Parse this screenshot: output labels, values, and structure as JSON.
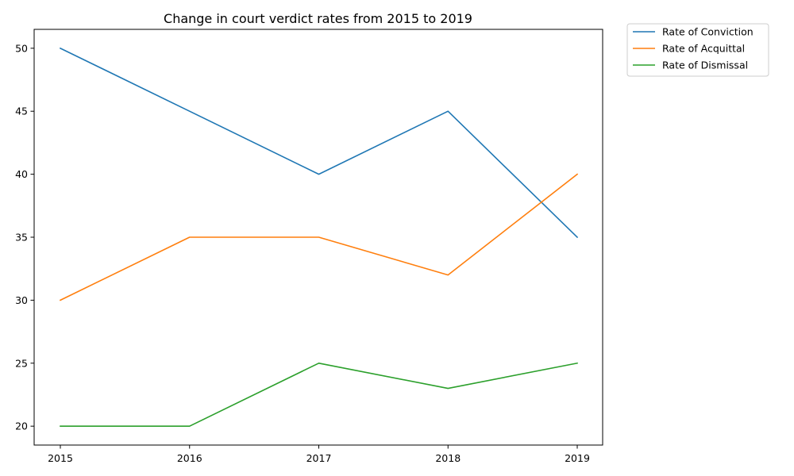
{
  "chart_data": {
    "type": "line",
    "title": "Change in court verdict rates from 2015 to 2019",
    "xlabel": "",
    "ylabel": "",
    "categories": [
      "2015",
      "2016",
      "2017",
      "2018",
      "2019"
    ],
    "yticks": [
      "20",
      "25",
      "30",
      "35",
      "40",
      "45",
      "50"
    ],
    "ylim": [
      18.5,
      51.5
    ],
    "grid": false,
    "legend_position": "outside-top-right",
    "series": [
      {
        "name": "Rate of Conviction",
        "color": "#1f77b4",
        "values": [
          50,
          45,
          40,
          45,
          35
        ]
      },
      {
        "name": "Rate of Acquittal",
        "color": "#ff7f0e",
        "values": [
          30,
          35,
          35,
          32,
          40
        ]
      },
      {
        "name": "Rate of Dismissal",
        "color": "#2ca02c",
        "values": [
          20,
          20,
          25,
          23,
          25
        ]
      }
    ]
  }
}
